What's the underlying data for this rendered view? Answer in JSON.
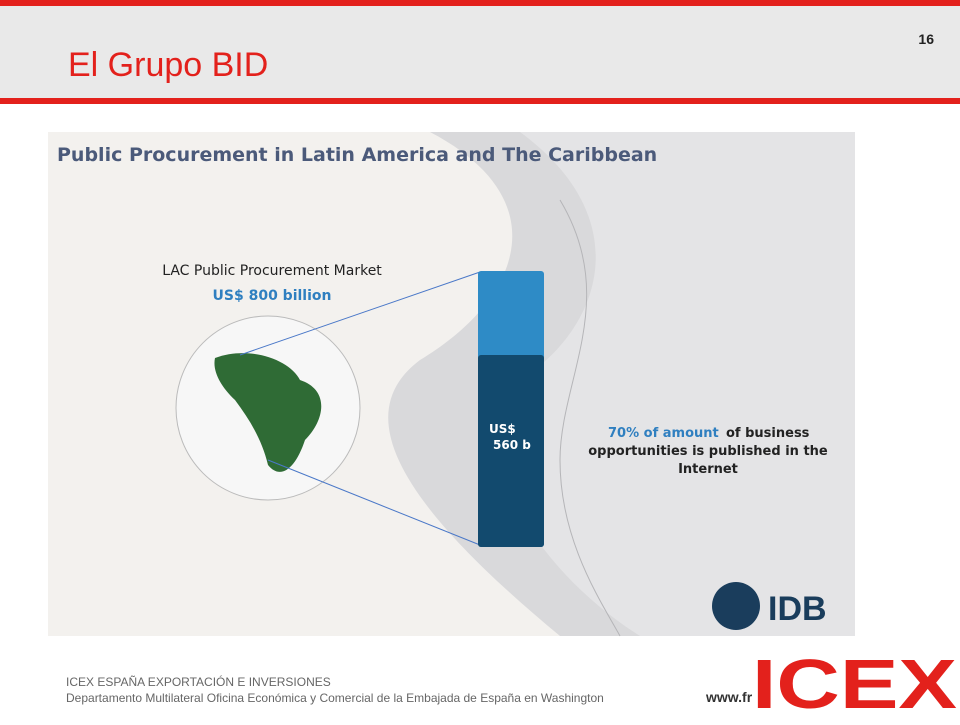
{
  "header": {
    "title": "El Grupo BID",
    "page_number": "16"
  },
  "infographic": {
    "title": "Public Procurement in Latin America and The Caribbean",
    "market_label": "LAC Public Procurement Market",
    "market_value": "US$ 800 billion",
    "bar_label": [
      "US$",
      "560 b"
    ],
    "note_highlight": "70% of amount",
    "note_lines": [
      "of business",
      "opportunities is published in the",
      "Internet"
    ],
    "logo": "IDB"
  },
  "footer": {
    "org": "ICEX ESPAÑA EXPORTACIÓN  E INVERSIONES",
    "department": "Departamento Multilateral Oficina Económica y Comercial de la Embajada de España en Washington",
    "url": "www.fr",
    "logo": "ICEX"
  }
}
